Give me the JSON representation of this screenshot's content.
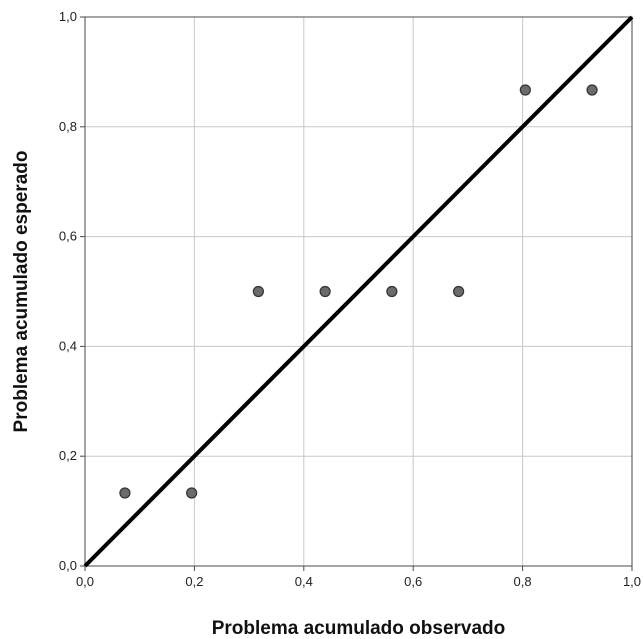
{
  "chart_data": {
    "type": "scatter",
    "xlabel": "Problema acumulado observado",
    "ylabel": "Problema acumulado esperado",
    "xlim": [
      0,
      1
    ],
    "ylim": [
      0,
      1
    ],
    "x_ticks": [
      "0,0",
      "0,2",
      "0,4",
      "0,6",
      "0,8",
      "1,0"
    ],
    "y_ticks": [
      "0,0",
      "0,2",
      "0,4",
      "0,6",
      "0,8",
      "1,0"
    ],
    "tick_values": [
      0,
      0.2,
      0.4,
      0.6,
      0.8,
      1.0
    ],
    "grid": true,
    "points": [
      {
        "x": 0.073,
        "y": 0.133
      },
      {
        "x": 0.195,
        "y": 0.133
      },
      {
        "x": 0.317,
        "y": 0.5
      },
      {
        "x": 0.439,
        "y": 0.5
      },
      {
        "x": 0.561,
        "y": 0.5
      },
      {
        "x": 0.683,
        "y": 0.5
      },
      {
        "x": 0.805,
        "y": 0.867
      },
      {
        "x": 0.927,
        "y": 0.867
      }
    ],
    "reference_line": {
      "from": [
        0,
        0
      ],
      "to": [
        1,
        1
      ]
    },
    "colors": {
      "point_fill": "#6b6b6b",
      "point_stroke": "#333333",
      "line": "#000000",
      "grid": "#c8c8c8",
      "frame": "#4a4a4a"
    }
  }
}
